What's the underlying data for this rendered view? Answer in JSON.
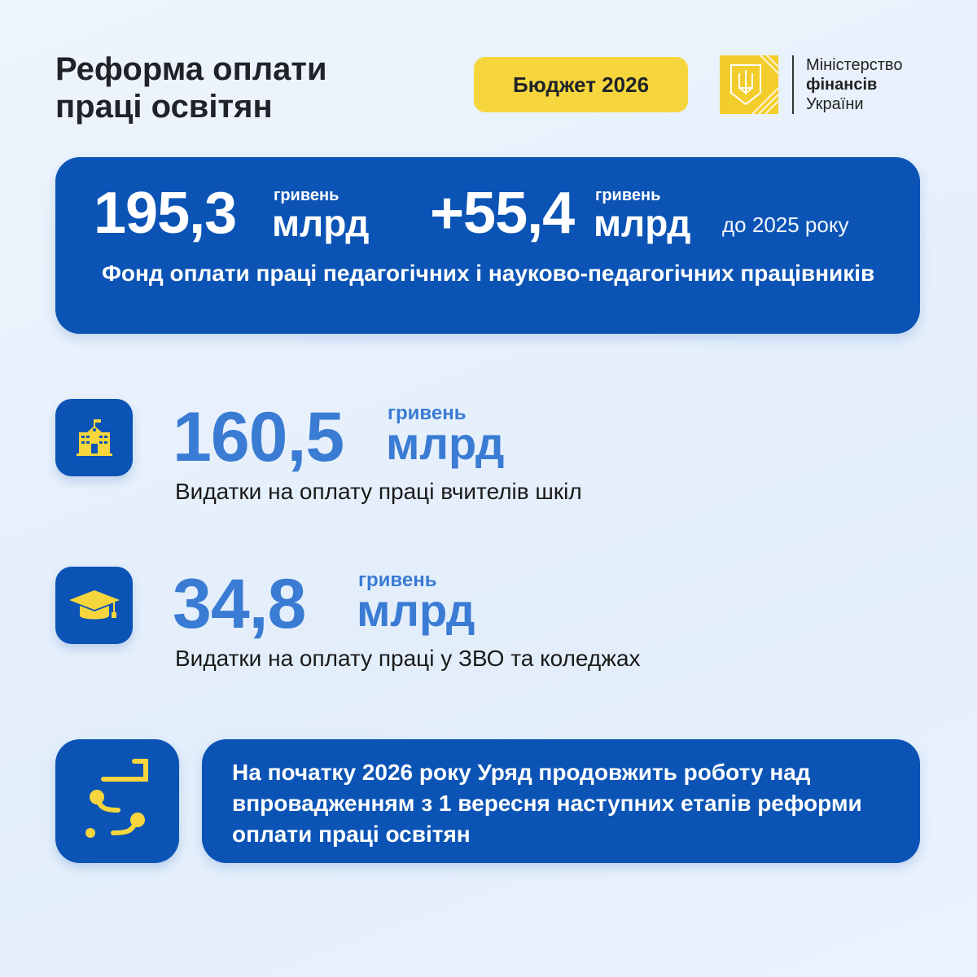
{
  "header": {
    "title_line1": "Реформа оплати",
    "title_line2": "праці освітян",
    "budget_label": "Бюджет 2026",
    "logo": {
      "line1": "Міністерство",
      "line2": "фінансів",
      "line3": "України"
    }
  },
  "summary": {
    "total_value": "195,3",
    "total_unit_small": "гривень",
    "total_unit_large": "млрд",
    "increase_value": "+55,4",
    "increase_unit_small": "гривень",
    "increase_unit_large": "млрд",
    "increase_note": "до 2025 року",
    "description": "Фонд оплати праці педагогічних і науково-педагогічних працівників"
  },
  "items": [
    {
      "icon": "school-icon",
      "value": "160,5",
      "unit_small": "гривень",
      "unit_large": "млрд",
      "description": "Видатки на оплату праці вчителів шкіл"
    },
    {
      "icon": "graduation-cap-icon",
      "value": "34,8",
      "unit_small": "гривень",
      "unit_large": "млрд",
      "description": "Видатки на оплату праці у ЗВО та коледжах"
    }
  ],
  "footer": {
    "icon": "roadmap-icon",
    "text": "На початку 2026 року Уряд продовжить роботу над впровадженням з 1 вересня наступних етапів реформи оплати праці освітян"
  },
  "colors": {
    "primary_blue": "#0b54b5",
    "accent_yellow": "#f6d63c",
    "number_blue": "#3a7bd3"
  }
}
